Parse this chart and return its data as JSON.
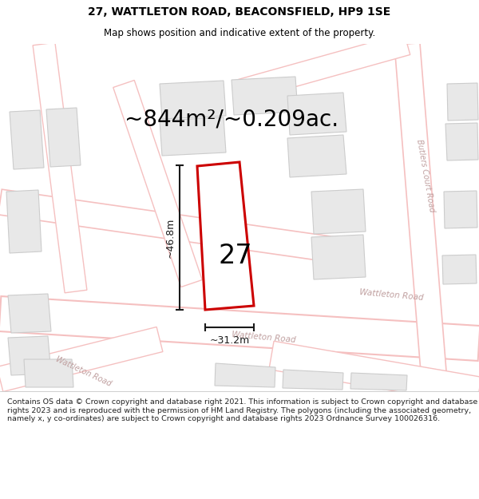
{
  "title": "27, WATTLETON ROAD, BEACONSFIELD, HP9 1SE",
  "subtitle": "Map shows position and indicative extent of the property.",
  "footer": "Contains OS data © Crown copyright and database right 2021. This information is subject to Crown copyright and database rights 2023 and is reproduced with the permission of HM Land Registry. The polygons (including the associated geometry, namely x, y co-ordinates) are subject to Crown copyright and database rights 2023 Ordnance Survey 100026316.",
  "area_label": "~844m²/~0.209ac.",
  "width_label": "~31.2m",
  "height_label": "~46.8m",
  "plot_number": "27",
  "bg_color": "#ffffff",
  "road_pink": "#f5c0c0",
  "building_fill": "#e8e8e8",
  "building_stroke": "#cccccc",
  "road_inner": "#ffffff",
  "highlight_fill": "#ffffff",
  "highlight_stroke": "#cc0000",
  "dim_color": "#1a1a1a",
  "text_color": "#000000",
  "road_label_color": "#c0a0a0",
  "title_fontsize": 10,
  "subtitle_fontsize": 8.5,
  "area_fontsize": 20,
  "footer_fontsize": 6.8
}
